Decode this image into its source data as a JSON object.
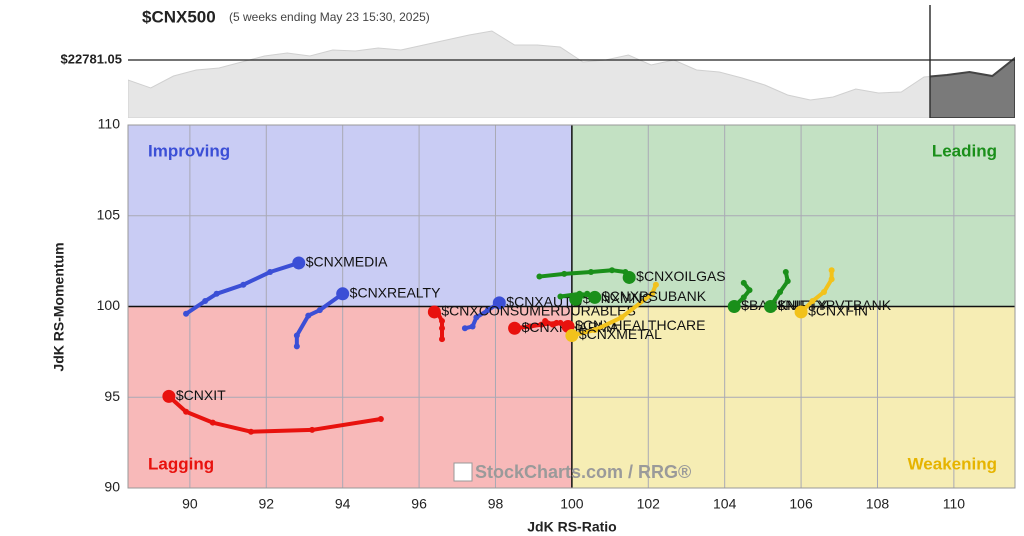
{
  "chart_data": {
    "type": "rrg",
    "title": "$CNX500",
    "subtitle": "(5 weeks ending May 23 15:30, 2025)",
    "price": {
      "values": [
        22374,
        22211,
        22455,
        22577,
        22618,
        22740,
        22862,
        22923,
        22862,
        22984,
        22964,
        23025,
        22984,
        23086,
        23188,
        23290,
        23371,
        23086,
        23086,
        23045,
        22740,
        22781,
        22882,
        22679,
        22781,
        22577,
        22537,
        22414,
        22272,
        22069,
        21967,
        22028,
        22191,
        22109,
        22130,
        22435,
        22475,
        22537,
        22455,
        22821
      ],
      "ylim": [
        21600,
        23900
      ],
      "level": 22781.05,
      "level_label": "$22781.05",
      "color": "#aaaaaa"
    },
    "x_label": "JdK RS-Ratio",
    "y_label": "JdK RS-Momentum",
    "xlim": [
      88.38,
      111.6
    ],
    "ylim": [
      90,
      110
    ],
    "xticks": [
      90,
      92,
      94,
      96,
      98,
      100,
      102,
      104,
      106,
      108,
      110
    ],
    "yticks": [
      90,
      95,
      100,
      105,
      110
    ],
    "grid": true,
    "quadrant_center": [
      100,
      100
    ],
    "quadrants": {
      "improving": "Improving",
      "leading": "Leading",
      "lagging": "Lagging",
      "weakening": "Weakening"
    },
    "watermark": "StockCharts.com / RRG®",
    "series": [
      {
        "name": "$CNXMEDIA",
        "color": "#3b4fd6",
        "x": [
          89.9,
          90.4,
          90.7,
          91.4,
          92.1,
          92.85
        ],
        "y": [
          99.6,
          100.3,
          100.7,
          101.2,
          101.9,
          102.4
        ]
      },
      {
        "name": "$CNXREALTY",
        "color": "#3b4fd6",
        "x": [
          92.8,
          92.8,
          93.1,
          93.4,
          94.0
        ],
        "y": [
          97.8,
          98.4,
          99.5,
          99.8,
          100.7
        ]
      },
      {
        "name": "$CNXAUTO",
        "color": "#3b4fd6",
        "x": [
          97.2,
          97.4,
          97.5,
          97.8,
          98.1
        ],
        "y": [
          98.8,
          98.9,
          99.4,
          99.8,
          100.2
        ]
      },
      {
        "name": "$CNXIT",
        "color": "#e8120e",
        "x": [
          95.0,
          93.2,
          91.6,
          90.6,
          89.9,
          89.45
        ],
        "y": [
          93.8,
          93.2,
          93.1,
          93.6,
          94.2,
          95.05
        ]
      },
      {
        "name": "$CNXCONSUMERDURABLES",
        "color": "#e8120e",
        "x": [
          96.6,
          96.6,
          96.6,
          96.5,
          96.4
        ],
        "y": [
          98.2,
          98.8,
          99.2,
          99.6,
          99.7
        ]
      },
      {
        "name": "$CNXPHARMA",
        "color": "#e8120e",
        "x": [
          99.6,
          99.2,
          98.9,
          98.5
        ],
        "y": [
          99.1,
          99.0,
          98.9,
          98.8
        ]
      },
      {
        "name": "$CNXHEALTHCARE",
        "color": "#e8120e",
        "x": [
          99.3,
          99.5,
          99.7,
          99.9
        ],
        "y": [
          99.2,
          99.0,
          99.1,
          98.9
        ]
      },
      {
        "name": "$CNXMETAL",
        "color": "#f2c21b",
        "x": [
          102.2,
          102.1,
          101.3,
          100.6,
          100.0
        ],
        "y": [
          101.2,
          100.7,
          99.4,
          98.7,
          98.4
        ]
      },
      {
        "name": "$CNXOILGAS",
        "color": "#1a8f1a",
        "x": [
          99.15,
          99.8,
          100.5,
          101.05,
          101.4,
          101.5
        ],
        "y": [
          101.65,
          101.8,
          101.9,
          102.0,
          101.9,
          101.6
        ]
      },
      {
        "name": "$CNXMNC",
        "color": "#1a8f1a",
        "x": [
          100.4,
          100.3,
          100.1
        ],
        "y": [
          100.7,
          100.6,
          100.4
        ]
      },
      {
        "name": "$CNXPSUBANK",
        "color": "#1a8f1a",
        "x": [
          99.7,
          100.2,
          100.5,
          100.6
        ],
        "y": [
          100.55,
          100.7,
          100.6,
          100.5
        ]
      },
      {
        "name": "$BANKNIFTY",
        "color": "#1a8f1a",
        "x": [
          104.5,
          104.65,
          104.5,
          104.25
        ],
        "y": [
          101.3,
          100.9,
          100.5,
          100.0
        ]
      },
      {
        "name": "$NIFTYPVTBANK",
        "color": "#1a8f1a",
        "x": [
          105.6,
          105.65,
          105.45,
          105.2
        ],
        "y": [
          101.9,
          101.4,
          100.8,
          100.0
        ]
      },
      {
        "name": "$CNXFIN",
        "color": "#f2c21b",
        "x": [
          106.8,
          106.8,
          106.6,
          106.3,
          106.0
        ],
        "y": [
          102.0,
          101.5,
          100.8,
          100.3,
          99.7
        ]
      }
    ]
  }
}
